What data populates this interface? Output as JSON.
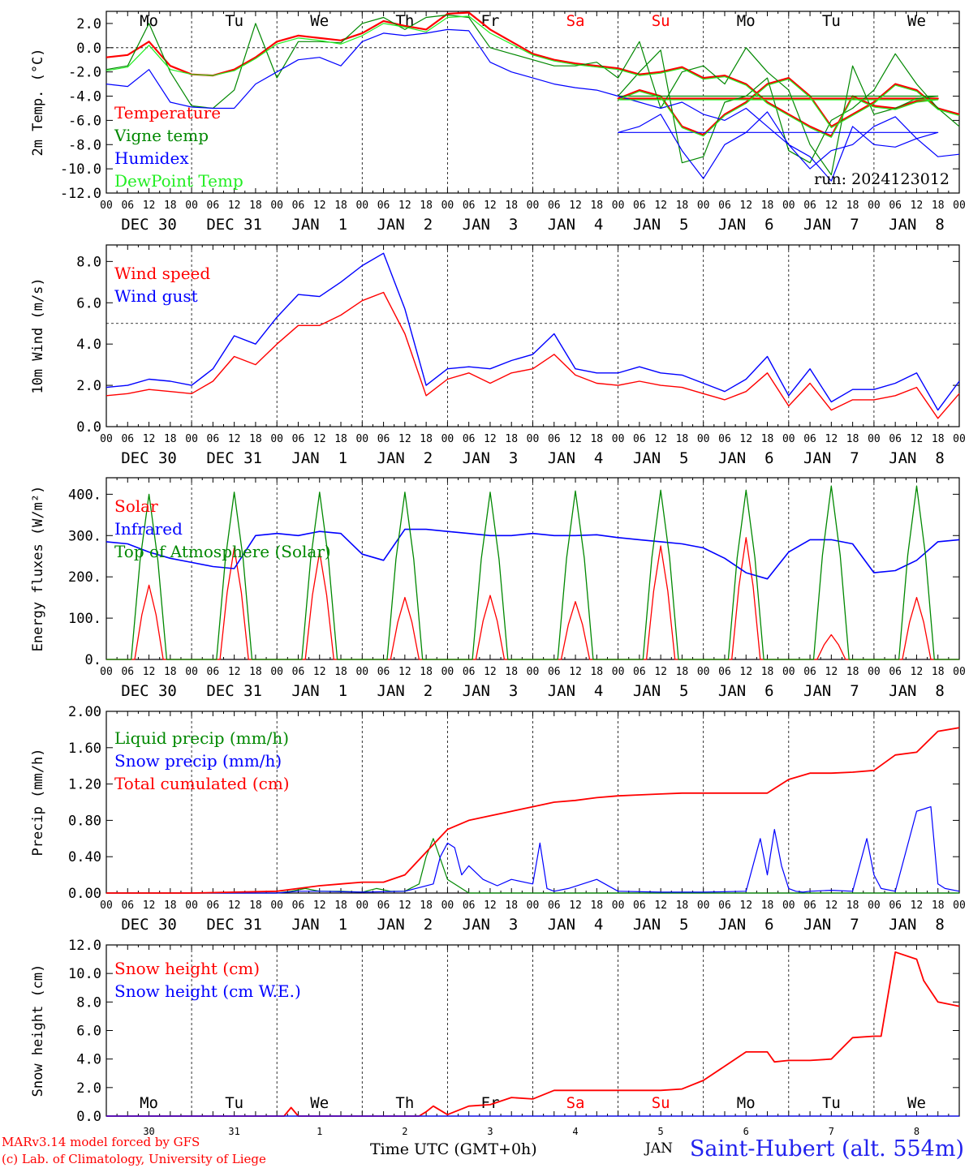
{
  "x_axis": {
    "hour_ticks": [
      "00",
      "06",
      "12",
      "18"
    ],
    "final_tick": "00",
    "date_labels": [
      "DEC 30",
      "DEC 31",
      "JAN  1",
      "JAN  2",
      "JAN  3",
      "JAN  4",
      "JAN  5",
      "JAN  6",
      "JAN  7",
      "JAN  8"
    ],
    "weekdays": [
      "Mo",
      "Tu",
      "We",
      "Th",
      "Fr",
      "Sa",
      "Su",
      "Mo",
      "Tu",
      "We"
    ],
    "weekday_colors": [
      "#000000",
      "#000000",
      "#000000",
      "#000000",
      "#000000",
      "#ff0000",
      "#ff0000",
      "#000000",
      "#000000",
      "#000000"
    ],
    "day_numbers": [
      "30",
      "31",
      "1",
      "2",
      "3",
      "4",
      "5",
      "6",
      "7",
      "8"
    ],
    "label": "Time UTC (GMT+0h)"
  },
  "run_label": "run: 2024123012",
  "footer": {
    "model_line": "MARv3.14 model forced by GFS",
    "lab_line": "(c) Lab. of Climatology, University of Liege",
    "station": "Saint-Hubert (alt. 554m)",
    "overlap_label": "JAN"
  },
  "colors": {
    "red": "#ff0000",
    "green": "#008800",
    "blue": "#0000ff",
    "light_green": "#22ee22",
    "station_blue": "#2222ee"
  },
  "chart_data": [
    {
      "type": "line",
      "ylabel": "2m Temp. (°C)",
      "ylim": [
        -12,
        3
      ],
      "yticks": [
        "2.0",
        "0.0",
        "-2.0",
        "-4.0",
        "-6.0",
        "-8.0",
        "-10.0",
        "-12.0"
      ],
      "ytick_values": [
        2,
        0,
        -2,
        -4,
        -6,
        -8,
        -10,
        -12
      ],
      "reference_line": 0,
      "x_hours_of_series": [
        0,
        6,
        12,
        18,
        24,
        30,
        36,
        42,
        48,
        54,
        60,
        66,
        72,
        78,
        84,
        90,
        96,
        102,
        108,
        114,
        120,
        126,
        132,
        138,
        144,
        150,
        156,
        162,
        168,
        174,
        180,
        186,
        192,
        198,
        204,
        210,
        216,
        222,
        228,
        234
      ],
      "series": [
        {
          "name": "Temperature",
          "color": "#ff0000",
          "values": [
            -0.8,
            -0.6,
            0.5,
            -1.5,
            -2.2,
            -2.3,
            -1.8,
            -0.8,
            0.5,
            1.0,
            0.8,
            0.6,
            1.2,
            2.2,
            1.8,
            1.5,
            2.8,
            2.9,
            1.5,
            0.5,
            -0.5,
            -1.0,
            -1.3,
            -1.5,
            -1.7,
            -2.2,
            -2.0,
            -1.6,
            -2.5,
            -2.3,
            -3.0,
            -4.5,
            -5.5,
            -6.5,
            -7.3,
            -4.0,
            -4.8,
            -5.0,
            -4.4,
            -4.2
          ]
        },
        {
          "name": "Vigne temp",
          "color": "#008800",
          "values": [
            -1.8,
            -1.5,
            2.0,
            -2.0,
            -4.8,
            -5.0,
            -3.5,
            2.0,
            -2.5,
            0.5,
            0.5,
            0.4,
            2.0,
            2.5,
            1.5,
            2.5,
            2.7,
            2.5,
            0.0,
            -0.5,
            -1.0,
            -1.5,
            -1.5,
            -1.2,
            -2.5,
            0.5,
            -5.0,
            -2.0,
            -1.5,
            -3.0,
            0.0,
            -2.0,
            -3.5,
            -8.0,
            -10.5,
            -1.5,
            -5.5,
            -5.0,
            -4.2,
            -4.0
          ]
        },
        {
          "name": "Humidex",
          "color": "#0000ff",
          "values": [
            -3.0,
            -3.2,
            -1.8,
            -4.5,
            -4.9,
            -5.0,
            -5.0,
            -3.0,
            -2.0,
            -1.0,
            -0.8,
            -1.5,
            0.5,
            1.2,
            1.0,
            1.2,
            1.5,
            1.4,
            -1.2,
            -2.0,
            -2.5,
            -3.0,
            -3.3,
            -3.5,
            -4.0,
            -4.5,
            -5.0,
            -4.5,
            -5.5,
            -6.0,
            -5.0,
            -6.5,
            -8.0,
            -9.0,
            -11.0,
            -6.5,
            -8.0,
            -8.2,
            -7.5,
            -7.0
          ]
        },
        {
          "name": "DewPoint Temp",
          "color": "#22ee22",
          "values": [
            -1.9,
            -1.6,
            0.2,
            -1.8,
            -2.2,
            -2.3,
            -1.9,
            -0.9,
            0.3,
            0.8,
            0.6,
            0.3,
            1.0,
            2.0,
            1.7,
            1.3,
            2.5,
            2.6,
            1.2,
            0.3,
            -0.6,
            -1.1,
            -1.4,
            -1.6,
            -1.8,
            -2.3,
            -2.1,
            -1.7,
            -2.6,
            -2.4,
            -3.1,
            -4.6,
            -5.6,
            -6.6,
            -7.4,
            -4.1,
            -4.9,
            -5.1,
            -4.5,
            -4.3
          ]
        }
      ],
      "series_b_hours": [
        144,
        150,
        156,
        162,
        168,
        174,
        180,
        186,
        192,
        198,
        204,
        210,
        216,
        222,
        228,
        234,
        240
      ],
      "series_b": [
        {
          "name": "Temperature",
          "values": [
            -4.2,
            -3.5,
            -4.0,
            -6.5,
            -7.2,
            -5.5,
            -4.5,
            -3.0,
            -2.5,
            -4.0,
            -6.5,
            -5.5,
            -4.5,
            -3.0,
            -3.5,
            -5.0,
            -5.5
          ]
        },
        {
          "name": "Vigne temp",
          "values": [
            -4.0,
            -2.0,
            -0.2,
            -9.5,
            -9.0,
            -4.5,
            -4.0,
            -2.5,
            -8.5,
            -9.5,
            -6.0,
            -5.0,
            -3.5,
            -0.5,
            -3.0,
            -5.0,
            -6.5
          ]
        },
        {
          "name": "Humidex",
          "values": [
            -7.0,
            -6.5,
            -5.5,
            -8.5,
            -10.8,
            -8.0,
            -7.0,
            -5.3,
            -8.0,
            -10.0,
            -8.5,
            -8.0,
            -6.5,
            -5.7,
            -7.5,
            -9.0,
            -8.8
          ]
        },
        {
          "name": "DewPoint Temp",
          "values": [
            -4.3,
            -3.6,
            -4.1,
            -6.6,
            -7.3,
            -5.6,
            -4.6,
            -3.1,
            -2.6,
            -4.1,
            -6.6,
            -5.6,
            -4.6,
            -3.1,
            -3.6,
            -5.1,
            -5.6
          ]
        }
      ]
    },
    {
      "type": "line",
      "ylabel": "10m Wind (m/s)",
      "ylim": [
        0,
        8.8
      ],
      "yticks": [
        "8.0",
        "6.0",
        "4.0",
        "2.0",
        "0.0"
      ],
      "ytick_values": [
        8,
        6,
        4,
        2,
        0
      ],
      "reference_line": 5,
      "x_hours": [
        0,
        6,
        12,
        18,
        24,
        30,
        36,
        42,
        48,
        54,
        60,
        66,
        72,
        78,
        84,
        90,
        96,
        102,
        108,
        114,
        120,
        126,
        132,
        138,
        144,
        150,
        156,
        162,
        168,
        174,
        180,
        186,
        192,
        198,
        204,
        210,
        216,
        222,
        228,
        234,
        240
      ],
      "series": [
        {
          "name": "Wind speed",
          "color": "#ff0000",
          "values": [
            1.5,
            1.6,
            1.8,
            1.7,
            1.6,
            2.2,
            3.4,
            3.0,
            4.0,
            4.9,
            4.9,
            5.4,
            6.1,
            6.5,
            4.5,
            1.5,
            2.3,
            2.6,
            2.1,
            2.6,
            2.8,
            3.5,
            2.5,
            2.1,
            2.0,
            2.2,
            2.0,
            1.9,
            1.6,
            1.3,
            1.7,
            2.6,
            1.0,
            2.1,
            0.8,
            1.3,
            1.3,
            1.5,
            1.9,
            0.4,
            1.6
          ]
        },
        {
          "name": "Wind gust",
          "color": "#0000ff",
          "values": [
            1.9,
            2.0,
            2.3,
            2.2,
            2.0,
            2.8,
            4.4,
            4.0,
            5.3,
            6.4,
            6.3,
            7.0,
            7.8,
            8.4,
            5.7,
            2.0,
            2.8,
            2.9,
            2.8,
            3.2,
            3.5,
            4.5,
            2.8,
            2.6,
            2.6,
            2.9,
            2.6,
            2.5,
            2.1,
            1.7,
            2.3,
            3.4,
            1.5,
            2.8,
            1.2,
            1.8,
            1.8,
            2.1,
            2.6,
            0.8,
            2.2
          ]
        }
      ]
    },
    {
      "type": "line",
      "ylabel": "Energy fluxes (W/m²)",
      "ylim": [
        0,
        440
      ],
      "yticks": [
        "400.",
        "300.",
        "200.",
        "100.",
        "0."
      ],
      "ytick_values": [
        400,
        300,
        200,
        100,
        0
      ],
      "series": [
        {
          "name": "Solar",
          "color": "#ff0000",
          "peaks": [
            180,
            270,
            260,
            150,
            155,
            140,
            275,
            295,
            60,
            150
          ]
        },
        {
          "name": "Infrared",
          "color": "#0000ff",
          "x_hours": [
            0,
            6,
            12,
            18,
            24,
            30,
            36,
            42,
            48,
            54,
            60,
            66,
            72,
            78,
            84,
            90,
            96,
            102,
            108,
            114,
            120,
            126,
            132,
            138,
            144,
            150,
            156,
            162,
            168,
            174,
            180,
            186,
            192,
            198,
            204,
            210,
            216,
            222,
            228,
            234,
            240
          ],
          "values": [
            285,
            280,
            260,
            245,
            235,
            225,
            220,
            300,
            305,
            300,
            310,
            305,
            255,
            240,
            315,
            315,
            310,
            305,
            300,
            300,
            305,
            300,
            300,
            302,
            295,
            290,
            285,
            280,
            270,
            245,
            210,
            195,
            260,
            290,
            290,
            280,
            210,
            215,
            240,
            285,
            290
          ]
        },
        {
          "name": "Top of Atmosphere (Solar)",
          "color": "#008800",
          "peaks": [
            400,
            405,
            405,
            405,
            405,
            408,
            410,
            410,
            420,
            420
          ]
        }
      ]
    },
    {
      "type": "line",
      "ylabel": "Precip (mm/h)",
      "ylim": [
        0,
        2.0
      ],
      "yticks": [
        "2.00",
        "1.60",
        "1.20",
        "0.80",
        "0.40",
        "0.00"
      ],
      "ytick_values": [
        2.0,
        1.6,
        1.2,
        0.8,
        0.4,
        0.0
      ],
      "series": [
        {
          "name": "Liquid precip (mm/h)",
          "color": "#008800",
          "x_hours": [
            0,
            24,
            48,
            52,
            56,
            60,
            66,
            72,
            76,
            80,
            84,
            88,
            90,
            92,
            96,
            102,
            240
          ],
          "values": [
            0,
            0,
            0,
            0.02,
            0.05,
            0.02,
            0.02,
            0.01,
            0.05,
            0.02,
            0.02,
            0.1,
            0.4,
            0.6,
            0.15,
            0,
            0
          ]
        },
        {
          "name": "Snow precip (mm/h)",
          "color": "#0000ff",
          "x_hours": [
            0,
            48,
            54,
            60,
            72,
            84,
            92,
            94,
            96,
            98,
            100,
            102,
            106,
            110,
            114,
            120,
            122,
            124,
            126,
            130,
            138,
            144,
            156,
            168,
            180,
            184,
            186,
            188,
            190,
            192,
            194,
            196,
            198,
            204,
            210,
            214,
            216,
            218,
            222,
            228,
            232,
            234,
            236,
            240
          ],
          "values": [
            0,
            0,
            0.02,
            0.02,
            0.01,
            0.02,
            0.1,
            0.4,
            0.55,
            0.5,
            0.2,
            0.3,
            0.15,
            0.08,
            0.15,
            0.1,
            0.55,
            0.05,
            0.02,
            0.05,
            0.15,
            0.02,
            0.01,
            0.01,
            0.02,
            0.6,
            0.2,
            0.7,
            0.3,
            0.05,
            0.02,
            0.01,
            0.02,
            0.03,
            0.02,
            0.6,
            0.2,
            0.05,
            0.02,
            0.9,
            0.95,
            0.1,
            0.05,
            0.02
          ]
        },
        {
          "name": "Total cumulated (cm)",
          "color": "#ff0000",
          "x_hours": [
            0,
            24,
            48,
            54,
            60,
            66,
            72,
            78,
            84,
            90,
            96,
            102,
            108,
            114,
            120,
            126,
            132,
            138,
            144,
            150,
            156,
            162,
            168,
            174,
            180,
            186,
            192,
            198,
            204,
            210,
            216,
            222,
            228,
            234,
            240
          ],
          "values": [
            0,
            0,
            0.02,
            0.05,
            0.08,
            0.1,
            0.12,
            0.12,
            0.2,
            0.45,
            0.7,
            0.8,
            0.85,
            0.9,
            0.95,
            1.0,
            1.02,
            1.05,
            1.07,
            1.08,
            1.09,
            1.1,
            1.1,
            1.1,
            1.1,
            1.1,
            1.25,
            1.32,
            1.32,
            1.33,
            1.35,
            1.52,
            1.55,
            1.78,
            1.82
          ]
        }
      ]
    },
    {
      "type": "line",
      "ylabel": "Snow height (cm)",
      "ylim": [
        0,
        12
      ],
      "yticks": [
        "12.0",
        "10.0",
        "8.0",
        "6.0",
        "4.0",
        "2.0",
        "0.0"
      ],
      "ytick_values": [
        12,
        10,
        8,
        6,
        4,
        2,
        0
      ],
      "series": [
        {
          "name": "Snow height (cm)",
          "color": "#ff0000",
          "x_hours": [
            0,
            48,
            50,
            52,
            54,
            56,
            72,
            76,
            78,
            80,
            84,
            88,
            90,
            92,
            96,
            102,
            108,
            114,
            120,
            126,
            132,
            138,
            144,
            150,
            156,
            162,
            168,
            174,
            180,
            186,
            188,
            192,
            194,
            198,
            204,
            210,
            216,
            218,
            222,
            228,
            230,
            234,
            240
          ],
          "values": [
            0,
            0,
            0,
            0.6,
            0,
            0,
            0,
            0,
            0,
            0,
            0,
            0,
            0.3,
            0.7,
            0.1,
            0.7,
            0.8,
            1.3,
            1.2,
            1.8,
            1.8,
            1.8,
            1.8,
            1.8,
            1.8,
            1.9,
            2.5,
            3.5,
            4.5,
            4.5,
            3.8,
            3.9,
            3.9,
            3.9,
            4.0,
            5.5,
            5.6,
            5.6,
            11.5,
            11.0,
            9.5,
            8.0,
            7.7
          ]
        },
        {
          "name": "Snow height (cm W.E.)",
          "color": "#0000ff",
          "x_hours": [
            0,
            240
          ],
          "values": [
            0,
            0
          ]
        }
      ]
    }
  ]
}
